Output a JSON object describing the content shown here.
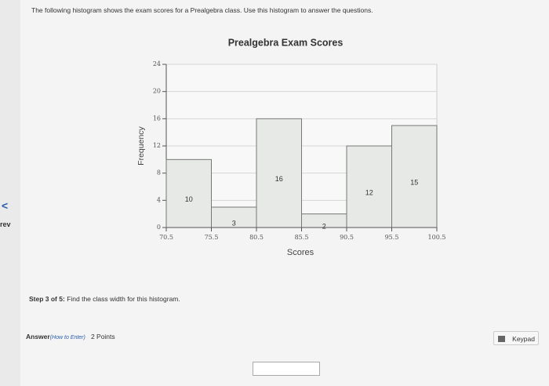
{
  "question": "The following histogram shows the exam scores for a Prealgebra class. Use this histogram to answer the questions.",
  "nav": {
    "prev_icon": "<",
    "prev_label": "rev"
  },
  "chart_data": {
    "type": "histogram",
    "title": "Prealgebra Exam Scores",
    "x_label": "Scores",
    "y_label": "Frequency",
    "bins": [
      70.5,
      75.5,
      80.5,
      85.5,
      90.5,
      95.5,
      100.5
    ],
    "values": [
      10,
      3,
      16,
      2,
      12,
      15
    ],
    "color": "#e6e9e6",
    "xlim": [
      70.5,
      100.5
    ],
    "ylim": [
      0,
      24
    ],
    "yticks": [
      0,
      4,
      8,
      12,
      16,
      20,
      24
    ],
    "grid": true
  },
  "step": {
    "label": "Step 3 of 5:",
    "text": "Find the class width for this histogram."
  },
  "answer": {
    "label": "Answer",
    "how_to": "(How to Enter)",
    "points": "2 Points"
  },
  "keypad": "Keypad"
}
